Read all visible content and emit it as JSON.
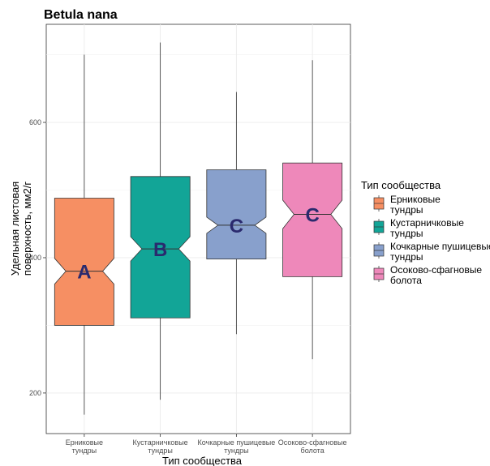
{
  "chart_data": {
    "type": "boxplot",
    "notched": true,
    "title": "Betula nana",
    "xlabel": "Тип сообщества",
    "ylabel": [
      "Удельная листовая",
      "поверхность, мм2/г"
    ],
    "ylim": [
      140,
      745
    ],
    "y_ticks": [
      200,
      400,
      600
    ],
    "grid": true,
    "legend": {
      "title": "Тип сообщества",
      "placement": "right"
    },
    "categories": [
      {
        "tick_label": [
          "Ерниковые",
          "тундры"
        ],
        "legend_label": [
          "Ерниковые",
          "тундры"
        ],
        "color": "#F68F63",
        "letter": "A",
        "min": 168,
        "q1": 300,
        "median": 380,
        "q3": 488,
        "max": 700,
        "notch_lower": 361,
        "notch_upper": 399
      },
      {
        "tick_label": [
          "Кустарничковые",
          "тундры"
        ],
        "legend_label": [
          "Кустарничковые",
          "тундры"
        ],
        "color": "#12A597",
        "letter": "B",
        "min": 190,
        "q1": 311,
        "median": 413,
        "q3": 520,
        "max": 718,
        "notch_lower": 395,
        "notch_upper": 431
      },
      {
        "tick_label": [
          "Кочкарные пушицевые",
          "тундры"
        ],
        "legend_label": [
          "Кочкарные пушицевые",
          "тундры"
        ],
        "color": "#88A0CC",
        "letter": "C",
        "min": 287,
        "q1": 398,
        "median": 448,
        "q3": 530,
        "max": 645,
        "notch_lower": 436,
        "notch_upper": 460
      },
      {
        "tick_label": [
          "Осоково-сфагновые",
          "болота"
        ],
        "legend_label": [
          "Осоково-сфагновые",
          "болота"
        ],
        "color": "#EE88BA",
        "letter": "C",
        "min": 250,
        "q1": 372,
        "median": 464,
        "q3": 540,
        "max": 692,
        "notch_lower": 443,
        "notch_upper": 485
      }
    ]
  }
}
